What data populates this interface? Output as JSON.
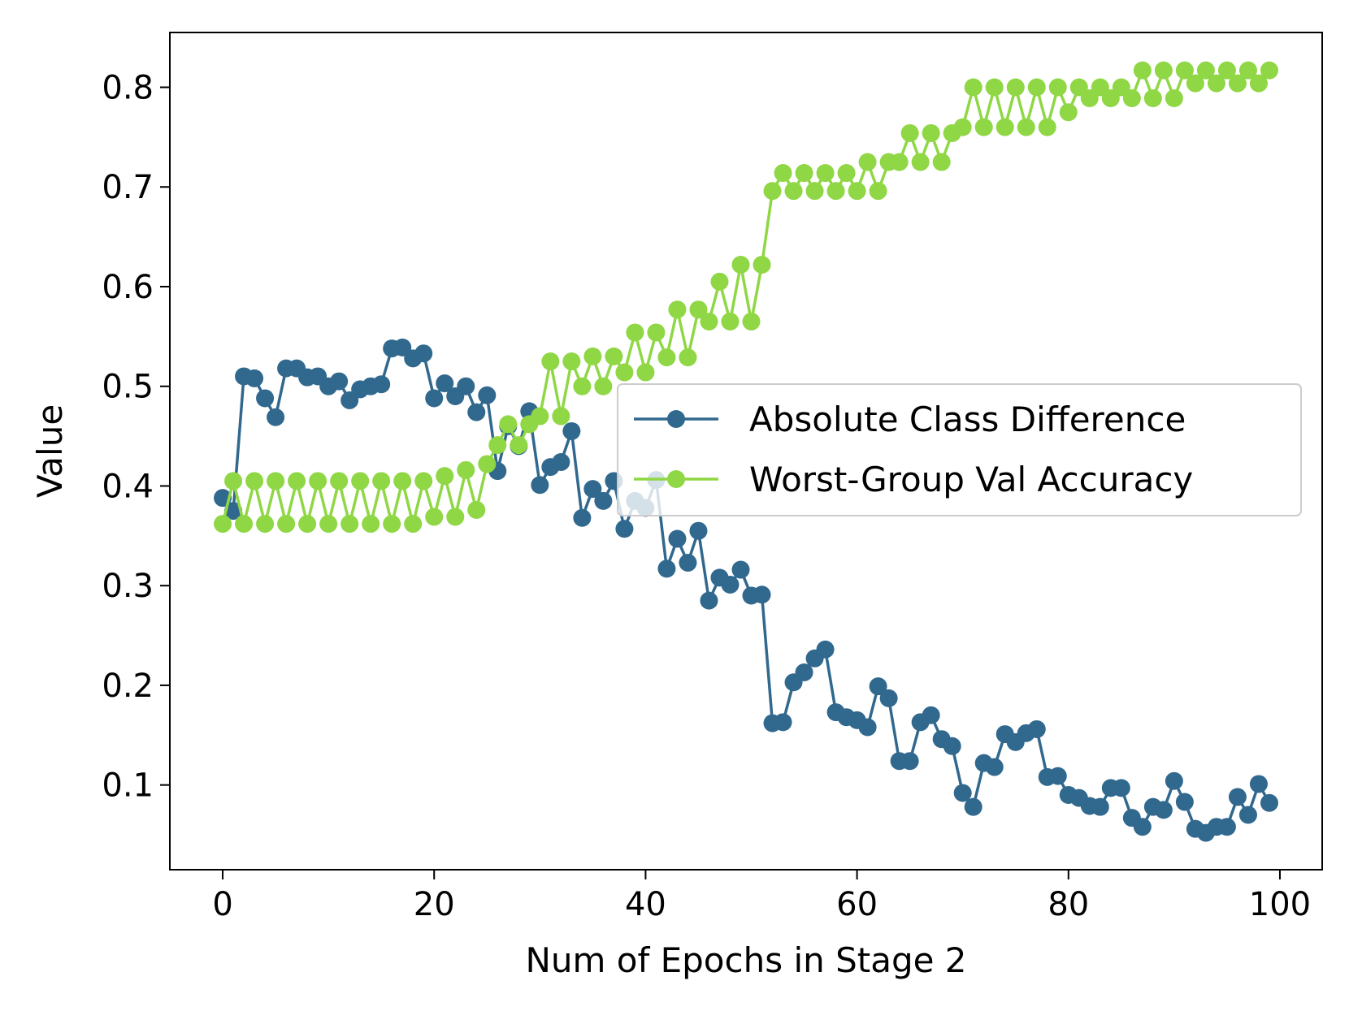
{
  "chart_data": {
    "type": "line",
    "title": "",
    "xlabel": "Num of Epochs in Stage 2",
    "ylabel": "Value",
    "xlim": [
      -5,
      104
    ],
    "ylim": [
      0.015,
      0.855
    ],
    "xticks": [
      0,
      20,
      40,
      60,
      80,
      100
    ],
    "xtick_labels": [
      "0",
      "20",
      "40",
      "60",
      "80",
      "100"
    ],
    "yticks": [
      0.1,
      0.2,
      0.3,
      0.4,
      0.5,
      0.6,
      0.7,
      0.8
    ],
    "ytick_labels": [
      "0.1",
      "0.2",
      "0.3",
      "0.4",
      "0.5",
      "0.6",
      "0.7",
      "0.8"
    ],
    "grid": false,
    "legend_position": "center-right",
    "x": [
      0,
      1,
      2,
      3,
      4,
      5,
      6,
      7,
      8,
      9,
      10,
      11,
      12,
      13,
      14,
      15,
      16,
      17,
      18,
      19,
      20,
      21,
      22,
      23,
      24,
      25,
      26,
      27,
      28,
      29,
      30,
      31,
      32,
      33,
      34,
      35,
      36,
      37,
      38,
      39,
      40,
      41,
      42,
      43,
      44,
      45,
      46,
      47,
      48,
      49,
      50,
      51,
      52,
      53,
      54,
      55,
      56,
      57,
      58,
      59,
      60,
      61,
      62,
      63,
      64,
      65,
      66,
      67,
      68,
      69,
      70,
      71,
      72,
      73,
      74,
      75,
      76,
      77,
      78,
      79,
      80,
      81,
      82,
      83,
      84,
      85,
      86,
      87,
      88,
      89,
      90,
      91,
      92,
      93,
      94,
      95,
      96,
      97,
      98,
      99
    ],
    "series": [
      {
        "name": "Absolute Class Difference",
        "color": "#31688e",
        "values": [
          0.388,
          0.375,
          0.51,
          0.508,
          0.488,
          0.469,
          0.518,
          0.518,
          0.509,
          0.51,
          0.5,
          0.505,
          0.486,
          0.497,
          0.5,
          0.502,
          0.538,
          0.539,
          0.528,
          0.533,
          0.488,
          0.503,
          0.49,
          0.5,
          0.474,
          0.491,
          0.415,
          0.46,
          0.44,
          0.475,
          0.401,
          0.419,
          0.424,
          0.455,
          0.368,
          0.397,
          0.385,
          0.405,
          0.357,
          0.385,
          0.378,
          0.406,
          0.317,
          0.347,
          0.323,
          0.355,
          0.285,
          0.308,
          0.301,
          0.316,
          0.29,
          0.291,
          0.162,
          0.163,
          0.203,
          0.213,
          0.227,
          0.236,
          0.173,
          0.168,
          0.165,
          0.158,
          0.199,
          0.187,
          0.124,
          0.124,
          0.163,
          0.17,
          0.146,
          0.139,
          0.092,
          0.078,
          0.122,
          0.118,
          0.151,
          0.143,
          0.152,
          0.156,
          0.108,
          0.109,
          0.09,
          0.087,
          0.079,
          0.078,
          0.097,
          0.097,
          0.067,
          0.058,
          0.078,
          0.075,
          0.104,
          0.083,
          0.056,
          0.052,
          0.058,
          0.058,
          0.088,
          0.07,
          0.101,
          0.082
        ]
      },
      {
        "name": "Worst-Group Val Accuracy",
        "color": "#8fd744",
        "values": [
          0.362,
          0.405,
          0.362,
          0.405,
          0.362,
          0.405,
          0.362,
          0.405,
          0.362,
          0.405,
          0.362,
          0.405,
          0.362,
          0.405,
          0.362,
          0.405,
          0.362,
          0.405,
          0.362,
          0.405,
          0.369,
          0.41,
          0.369,
          0.416,
          0.376,
          0.422,
          0.441,
          0.462,
          0.441,
          0.462,
          0.47,
          0.525,
          0.47,
          0.525,
          0.5,
          0.53,
          0.5,
          0.53,
          0.514,
          0.554,
          0.514,
          0.554,
          0.529,
          0.577,
          0.529,
          0.577,
          0.565,
          0.605,
          0.565,
          0.622,
          0.565,
          0.622,
          0.696,
          0.714,
          0.696,
          0.714,
          0.696,
          0.714,
          0.696,
          0.714,
          0.696,
          0.725,
          0.696,
          0.725,
          0.725,
          0.754,
          0.725,
          0.754,
          0.725,
          0.754,
          0.76,
          0.8,
          0.76,
          0.8,
          0.76,
          0.8,
          0.76,
          0.8,
          0.76,
          0.8,
          0.775,
          0.8,
          0.789,
          0.8,
          0.789,
          0.8,
          0.789,
          0.817,
          0.789,
          0.817,
          0.789,
          0.817,
          0.804,
          0.817,
          0.804,
          0.817,
          0.804,
          0.817,
          0.804,
          0.817
        ]
      }
    ]
  }
}
